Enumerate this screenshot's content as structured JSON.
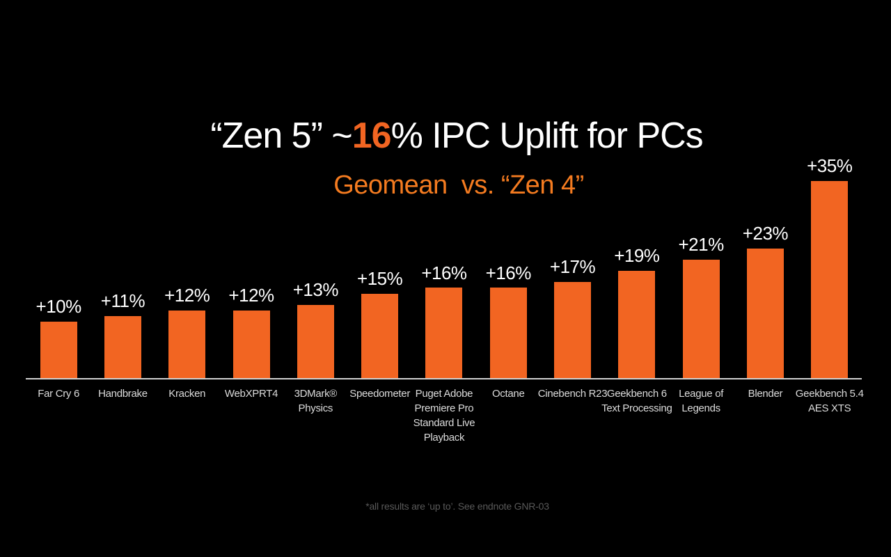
{
  "slide": {
    "title": {
      "part1": "“Zen 5” ~",
      "highlight": "16",
      "part2": "% IPC Uplift for PCs"
    },
    "subtitle": "Geomean  vs. “Zen 4”",
    "footnote": "*all results are ‘up to’. See endnote GNR-03"
  },
  "chart_data": {
    "type": "bar",
    "title": "“Zen 5” ~16% IPC Uplift for PCs",
    "subtitle": "Geomean vs. “Zen 4”",
    "categories": [
      "Far Cry 6",
      "Handbrake",
      "Kracken",
      "WebXPRT4",
      "3DMark®\nPhysics",
      "Speedometer",
      "Puget Adobe\nPremiere Pro\nStandard Live\nPlayback",
      "Octane",
      "Cinebench R23",
      "Geekbench 6\nText Processing",
      "League of\nLegends",
      "Blender",
      "Geekbench 5.4\nAES XTS"
    ],
    "values": [
      10,
      11,
      12,
      12,
      13,
      15,
      16,
      16,
      17,
      19,
      21,
      23,
      35
    ],
    "value_labels": [
      "+10%",
      "+11%",
      "+12%",
      "+12%",
      "+13%",
      "+15%",
      "+16%",
      "+16%",
      "+17%",
      "+19%",
      "+21%",
      "+23%",
      "+35%"
    ],
    "xlabel": "",
    "ylabel": "",
    "ylim": [
      0,
      38
    ],
    "grid": false,
    "legend": false,
    "bar_color": "#F26522"
  },
  "colors": {
    "background": "#000000",
    "accent_orange": "#F26522",
    "subtitle_orange": "#F47B20",
    "value_label_white": "#FFFFFF",
    "category_label_gray": "#DCDCDC",
    "axis_line_gray": "#CFCFCF",
    "footnote_gray": "#595959"
  }
}
